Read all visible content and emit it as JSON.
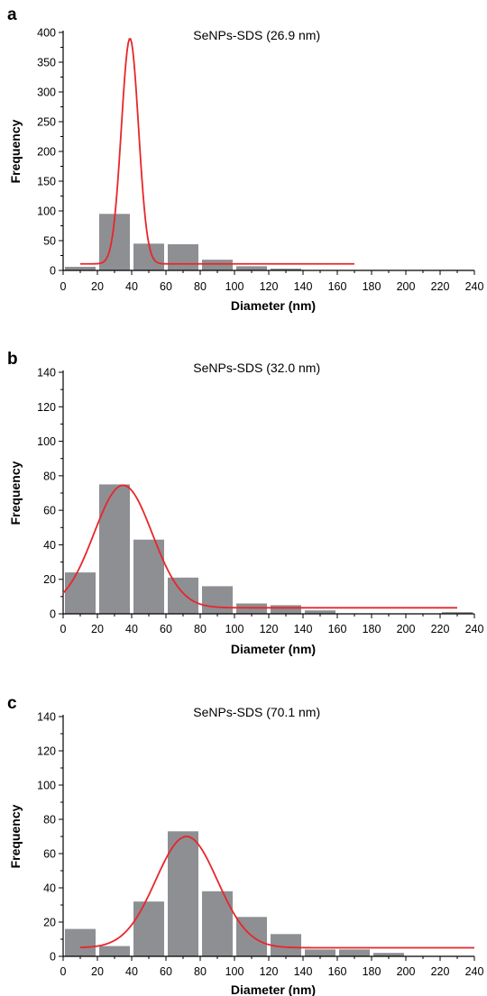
{
  "colors": {
    "bar": "#8e8f93",
    "fit": "#e8262a"
  },
  "chart_data": [
    {
      "panel": "a",
      "type": "bar",
      "title": "SeNPs-SDS (26.9 nm)",
      "xlabel": "Diameter (nm)",
      "ylabel": "Frequency",
      "xlim": [
        0,
        240
      ],
      "ylim": [
        0,
        400
      ],
      "x_ticks": [
        0,
        20,
        40,
        60,
        80,
        100,
        120,
        140,
        160,
        180,
        200,
        220,
        240
      ],
      "y_ticks": [
        0,
        50,
        100,
        150,
        200,
        250,
        300,
        350,
        400
      ],
      "bin_width": 20,
      "bins": [
        0,
        20,
        40,
        60,
        80,
        100,
        120
      ],
      "values": [
        6,
        95,
        45,
        44,
        18,
        7,
        3
      ],
      "fit": {
        "type": "gaussian",
        "center": 39,
        "width": 5,
        "amplitude": 379,
        "baseline": 11,
        "x_range": [
          10,
          170
        ]
      }
    },
    {
      "panel": "b",
      "type": "bar",
      "title": "SeNPs-SDS (32.0 nm)",
      "xlabel": "Diameter (nm)",
      "ylabel": "Frequency",
      "xlim": [
        0,
        240
      ],
      "ylim": [
        0,
        140
      ],
      "x_ticks": [
        0,
        20,
        40,
        60,
        80,
        100,
        120,
        140,
        160,
        180,
        200,
        220,
        240
      ],
      "y_ticks": [
        0,
        20,
        40,
        60,
        80,
        100,
        120,
        140
      ],
      "bin_width": 20,
      "bins": [
        0,
        20,
        40,
        60,
        80,
        100,
        120,
        140,
        220
      ],
      "values": [
        24,
        75,
        43,
        21,
        16,
        6,
        5,
        2,
        1
      ],
      "fit": {
        "type": "gaussian",
        "center": 35,
        "width": 17,
        "amplitude": 71,
        "baseline": 3.5,
        "x_range": [
          0,
          230
        ]
      }
    },
    {
      "panel": "c",
      "type": "bar",
      "title": "SeNPs-SDS (70.1 nm)",
      "xlabel": "Diameter (nm)",
      "ylabel": "Frequency",
      "xlim": [
        0,
        240
      ],
      "ylim": [
        0,
        140
      ],
      "x_ticks": [
        0,
        20,
        40,
        60,
        80,
        100,
        120,
        140,
        160,
        180,
        200,
        220,
        240
      ],
      "y_ticks": [
        0,
        20,
        40,
        60,
        80,
        100,
        120,
        140
      ],
      "bin_width": 20,
      "bins": [
        0,
        20,
        40,
        60,
        80,
        100,
        120,
        140,
        160,
        180
      ],
      "values": [
        16,
        6,
        32,
        73,
        38,
        23,
        13,
        4,
        4,
        2
      ],
      "fit": {
        "type": "gaussian",
        "center": 72,
        "width": 18,
        "amplitude": 65,
        "baseline": 5,
        "x_range": [
          10,
          240
        ]
      }
    }
  ]
}
